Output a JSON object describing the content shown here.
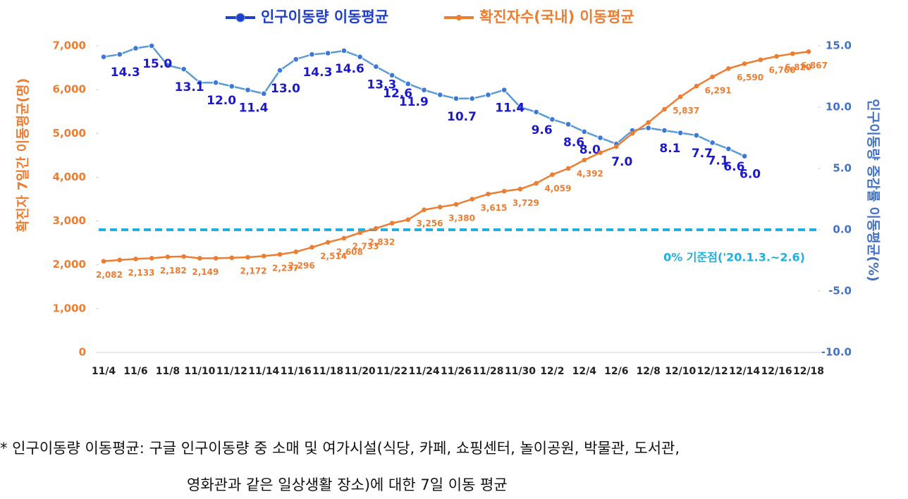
{
  "chart_data": {
    "type": "line",
    "legend": "top",
    "y_label": "확진자 7일간 이동평균(명)",
    "y2_label": "인구이동량 증감률 이동평균(%)",
    "categories": [
      "11/4",
      null,
      "11/6",
      null,
      "11/8",
      null,
      "11/10",
      null,
      "11/12",
      null,
      "11/14",
      null,
      "11/16",
      null,
      "11/18",
      null,
      "11/20",
      null,
      "11/22",
      null,
      "11/24",
      null,
      "11/26",
      null,
      "11/28",
      null,
      "11/30",
      null,
      "12/2",
      null,
      "12/4",
      null,
      "12/6",
      null,
      "12/8",
      null,
      "12/10",
      null,
      "12/12",
      null,
      "12/14",
      null,
      "12/16",
      null,
      "12/18"
    ],
    "ylim": [
      0,
      7000
    ],
    "yticks": [
      0,
      {
        "value": 1000,
        "label": "1,000"
      },
      {
        "value": 2000,
        "label": "2,000"
      },
      {
        "value": 3000,
        "label": "3,000"
      },
      {
        "value": 4000,
        "label": "4,000"
      },
      {
        "value": 5000,
        "label": "5,000"
      },
      {
        "value": 6000,
        "label": "6,000"
      },
      {
        "value": 7000,
        "label": "7,000"
      }
    ],
    "y2lim": [
      -10,
      15
    ],
    "y2ticks": [
      {
        "value": -10,
        "label": "-10.0"
      },
      {
        "value": -5,
        "label": "-5.0"
      },
      {
        "value": 0,
        "label": "0.0"
      },
      {
        "value": 5,
        "label": "5.0"
      },
      {
        "value": 10,
        "label": "10.0"
      },
      {
        "value": 15,
        "label": "15.0"
      }
    ],
    "reference_line": {
      "value": 0,
      "axis": "y2",
      "color": "#1fb0e0",
      "label": "0% 기준점('20.1.3.~2.6)"
    },
    "series": [
      {
        "name": "인구이동량 이동평균",
        "color": "#5b9bd5",
        "axis": "y2",
        "values": [
          14.1,
          14.3,
          14.8,
          15.0,
          13.4,
          13.1,
          12.0,
          12.0,
          11.7,
          11.4,
          11.1,
          13.0,
          13.9,
          14.3,
          14.4,
          14.6,
          14.1,
          13.3,
          12.6,
          11.9,
          11.4,
          11.0,
          10.7,
          10.7,
          11.0,
          11.4,
          10.0,
          9.6,
          9.0,
          8.6,
          8.0,
          7.5,
          7.0,
          8.1,
          8.3,
          8.1,
          7.9,
          7.7,
          7.1,
          6.6,
          6.0,
          null,
          null,
          null,
          null
        ],
        "value_labels": [
          null,
          "14.3",
          null,
          "15.0",
          null,
          "13.1",
          null,
          "12.0",
          null,
          "11.4",
          null,
          "13.0",
          null,
          "14.3",
          null,
          "14.6",
          null,
          "13.3",
          "12.6",
          "11.9",
          null,
          null,
          "10.7",
          null,
          null,
          "11.4",
          null,
          "9.6",
          null,
          "8.6",
          "8.0",
          null,
          "7.0",
          null,
          null,
          "8.1",
          null,
          "7.7",
          "7.1",
          "6.6",
          "6.0",
          null,
          null,
          null,
          null
        ]
      },
      {
        "name": "확진자수(국내) 이동평균",
        "color": "#ed7d31",
        "axis": "y",
        "values": [
          2082,
          2110,
          2133,
          2150,
          2182,
          2190,
          2149,
          2150,
          2160,
          2172,
          2200,
          2237,
          2296,
          2400,
          2514,
          2608,
          2733,
          2832,
          2950,
          3030,
          3256,
          3320,
          3380,
          3500,
          3615,
          3680,
          3729,
          3860,
          4059,
          4200,
          4392,
          4560,
          4700,
          5000,
          5250,
          5550,
          5837,
          6080,
          6291,
          6480,
          6590,
          6680,
          6760,
          6820,
          6867
        ],
        "value_labels": [
          "2,082",
          null,
          "2,133",
          null,
          "2,182",
          null,
          "2,149",
          null,
          null,
          "2,172",
          null,
          "2,237",
          "2,296",
          null,
          "2,514",
          "2,608",
          "2,733",
          "2,832",
          null,
          null,
          "3,256",
          null,
          "3,380",
          null,
          "3,615",
          null,
          "3,729",
          null,
          "4,059",
          null,
          "4,392",
          null,
          null,
          null,
          null,
          null,
          "5,837",
          null,
          "6,291",
          null,
          "6,590",
          null,
          "6,760",
          "6,820",
          "6,867"
        ]
      }
    ]
  },
  "footnote": [
    "*  인구이동량 이동평균: 구글 인구이동량 중 소매 및 여가시설(식당, 카페, 쇼핑센터, 놀이공원, 박물관, 도서관,",
    "영화관과 같은 일상생활 장소)에 대한 7일 이동 평균"
  ]
}
